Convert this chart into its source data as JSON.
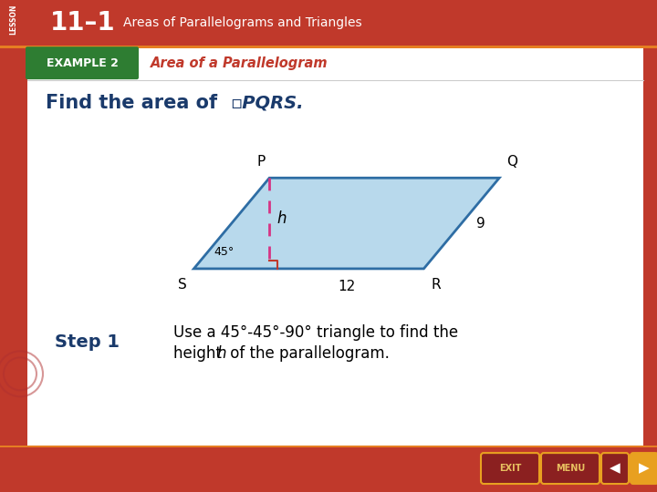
{
  "bg_color": "#c0392b",
  "header_bg": "#c0392b",
  "header_subtitle": "Areas of Parallelograms and Triangles",
  "example_box_color": "#2e7d32",
  "example_label": "EXAMPLE 2",
  "example_title": "Area of a Parallelogram",
  "example_title_color": "#c0392b",
  "find_text_color": "#1a3a6b",
  "parallelogram_fill": "#b8d9ec",
  "parallelogram_edge": "#2e6da4",
  "dashed_line_color": "#d63384",
  "angle_label": "45°",
  "height_label": "h",
  "label_9": "9",
  "label_12": "12",
  "label_P": "P",
  "label_Q": "Q",
  "label_S": "S",
  "label_R": "R",
  "step1_label": "Step 1",
  "step1_text_line1": "Use a 45°-45°-90° triangle to find the",
  "step1_text_line2": "height ℎ of the parallelogram.",
  "footer_bg": "#c0392b",
  "main_bg": "#ffffff",
  "S": [
    0.295,
    0.455
  ],
  "P": [
    0.41,
    0.64
  ],
  "Q": [
    0.76,
    0.64
  ],
  "R": [
    0.645,
    0.455
  ]
}
